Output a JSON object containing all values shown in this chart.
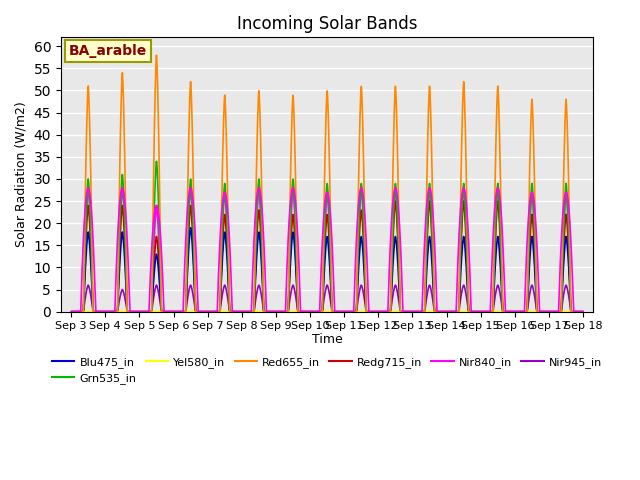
{
  "title": "Incoming Solar Bands",
  "xlabel": "Time",
  "ylabel": "Solar Radiation (W/m2)",
  "annotation": "BA_arable",
  "ylim": [
    0,
    62
  ],
  "background_color": "#e8e8e8",
  "legend": [
    {
      "label": "Blu475_in",
      "color": "#0000cc"
    },
    {
      "label": "Grn535_in",
      "color": "#00bb00"
    },
    {
      "label": "Yel580_in",
      "color": "#ffff00"
    },
    {
      "label": "Red655_in",
      "color": "#ff8800"
    },
    {
      "label": "Redg715_in",
      "color": "#cc0000"
    },
    {
      "label": "Nir840_in",
      "color": "#ff00ff"
    },
    {
      "label": "Nir945_in",
      "color": "#9900cc"
    }
  ],
  "num_days": 15,
  "peaks": {
    "Blu475_in": [
      18,
      18,
      13,
      19,
      18,
      18,
      18,
      17,
      17,
      17,
      17,
      17,
      17,
      17,
      17
    ],
    "Grn535_in": [
      30,
      31,
      34,
      30,
      29,
      30,
      30,
      29,
      29,
      29,
      29,
      29,
      29,
      29,
      29
    ],
    "Yel580_in": [
      0,
      0,
      0,
      0,
      0,
      0,
      0,
      0,
      0,
      0,
      0,
      0,
      0,
      0,
      0
    ],
    "Red655_in": [
      51,
      54,
      58,
      52,
      49,
      50,
      49,
      50,
      51,
      51,
      51,
      52,
      51,
      48,
      48
    ],
    "Redg715_in": [
      24,
      24,
      17,
      24,
      22,
      23,
      22,
      22,
      23,
      25,
      25,
      25,
      25,
      22,
      22
    ],
    "Nir840_in": [
      28,
      28,
      24,
      28,
      27,
      28,
      28,
      27,
      28,
      28,
      28,
      28,
      28,
      27,
      27
    ],
    "Nir945_in": [
      6,
      5,
      6,
      6,
      6,
      6,
      6,
      6,
      6,
      6,
      6,
      6,
      6,
      6,
      6
    ]
  },
  "xtick_labels": [
    "Sep 3",
    "Sep 4",
    "Sep 5",
    "Sep 6",
    "Sep 7",
    "Sep 8",
    "Sep 9",
    "Sep 10",
    "Sep 11",
    "Sep 12",
    "Sep 13",
    "Sep 14",
    "Sep 15",
    "Sep 16",
    "Sep 17",
    "Sep 18"
  ],
  "series_colors": {
    "Blu475_in": "#0000cc",
    "Grn535_in": "#00bb00",
    "Yel580_in": "#ffff00",
    "Red655_in": "#ff8800",
    "Redg715_in": "#cc0000",
    "Nir840_in": "#ff00ff",
    "Nir945_in": "#9900cc"
  },
  "draw_order": [
    "Nir945_in",
    "Nir840_in",
    "Redg715_in",
    "Blu475_in",
    "Grn535_in",
    "Yel580_in",
    "Red655_in"
  ]
}
